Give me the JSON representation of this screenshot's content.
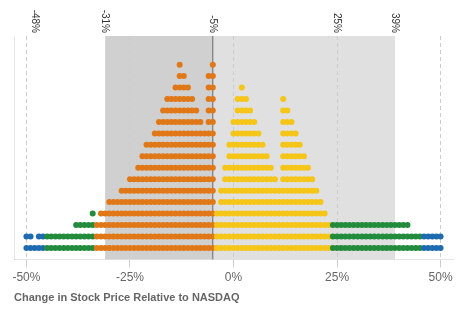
{
  "chart_data": {
    "type": "dot",
    "xlabel": "Change in Stock Price Relative to NASDAQ",
    "x": [
      -50,
      -49,
      -48,
      -47,
      -46,
      -45,
      -44,
      -43,
      -42,
      -41,
      -40,
      -39,
      -38,
      -37,
      -36,
      -35,
      -34,
      -33,
      -32,
      -31,
      -30,
      -29,
      -28,
      -27,
      -26,
      -25,
      -24,
      -23,
      -22,
      -21,
      -20,
      -19,
      -18,
      -17,
      -16,
      -15,
      -14,
      -13,
      -12,
      -11,
      -10,
      -9,
      -8,
      -7,
      -6,
      -5,
      -4,
      -3,
      -2,
      -1,
      0,
      1,
      2,
      3,
      4,
      5,
      6,
      7,
      8,
      9,
      10,
      11,
      12,
      13,
      14,
      15,
      16,
      17,
      18,
      19,
      20,
      21,
      22,
      23,
      24,
      25,
      26,
      27,
      28,
      29,
      30,
      31,
      32,
      33,
      34,
      35,
      36,
      37,
      38,
      39,
      40,
      41,
      42,
      43,
      44,
      45,
      46,
      47,
      48,
      49,
      50
    ],
    "values": [
      2,
      2,
      1,
      2,
      2,
      2,
      2,
      2,
      2,
      2,
      2,
      2,
      3,
      3,
      3,
      3,
      4,
      3,
      4,
      4,
      5,
      5,
      5,
      6,
      6,
      7,
      7,
      8,
      9,
      10,
      10,
      11,
      12,
      13,
      14,
      14,
      15,
      17,
      16,
      15,
      14,
      13,
      12,
      11,
      16,
      17,
      4,
      6,
      8,
      10,
      12,
      14,
      15,
      14,
      13,
      12,
      11,
      10,
      9,
      8,
      7,
      6,
      14,
      13,
      12,
      11,
      10,
      9,
      8,
      7,
      6,
      5,
      4,
      3,
      3,
      3,
      3,
      3,
      3,
      3,
      3,
      3,
      3,
      3,
      3,
      3,
      3,
      3,
      3,
      3,
      3,
      3,
      3,
      2,
      2,
      2,
      2,
      2,
      2,
      2,
      2
    ],
    "colors": [
      "#1f6bb0",
      "#1f6bb0",
      "#1f6bb0",
      "#1f6bb0",
      "#1f6bb0",
      "#228b3c",
      "#228b3c",
      "#228b3c",
      "#228b3c",
      "#228b3c",
      "#228b3c",
      "#228b3c",
      "#228b3c",
      "#228b3c",
      "#228b3c",
      "#228b3c",
      "#228b3c",
      "#e07818",
      "#e07818",
      "#e07818",
      "#e07818",
      "#e07818",
      "#e07818",
      "#e07818",
      "#e07818",
      "#e07818",
      "#e07818",
      "#e07818",
      "#e07818",
      "#e07818",
      "#e07818",
      "#e07818",
      "#e07818",
      "#e07818",
      "#e07818",
      "#e07818",
      "#e07818",
      "#e07818",
      "#e07818",
      "#e07818",
      "#e07818",
      "#e07818",
      "#e07818",
      "#e07818",
      "#e07818",
      "#e07818",
      "#f5c518",
      "#f5c518",
      "#f5c518",
      "#f5c518",
      "#f5c518",
      "#f5c518",
      "#f5c518",
      "#f5c518",
      "#f5c518",
      "#f5c518",
      "#f5c518",
      "#f5c518",
      "#f5c518",
      "#f5c518",
      "#f5c518",
      "#f5c518",
      "#f5c518",
      "#f5c518",
      "#f5c518",
      "#f5c518",
      "#f5c518",
      "#f5c518",
      "#f5c518",
      "#f5c518",
      "#f5c518",
      "#f5c518",
      "#f5c518",
      "#f5c518",
      "#228b3c",
      "#228b3c",
      "#228b3c",
      "#228b3c",
      "#228b3c",
      "#228b3c",
      "#228b3c",
      "#228b3c",
      "#228b3c",
      "#228b3c",
      "#228b3c",
      "#228b3c",
      "#228b3c",
      "#228b3c",
      "#228b3c",
      "#228b3c",
      "#228b3c",
      "#228b3c",
      "#228b3c",
      "#228b3c",
      "#228b3c",
      "#228b3c",
      "#1f6bb0",
      "#1f6bb0",
      "#1f6bb0",
      "#1f6bb0",
      "#1f6bb0"
    ],
    "xlim": [
      -53,
      53
    ],
    "xticks": [
      {
        "value": -50,
        "label": "-50%"
      },
      {
        "value": -25,
        "label": "-25%"
      },
      {
        "value": 0,
        "label": "0%"
      },
      {
        "value": 25,
        "label": "25%"
      },
      {
        "value": 50,
        "label": "50%"
      }
    ],
    "ylim": [
      -0.5,
      19
    ],
    "tick_labels": "x",
    "grid": true,
    "spans": [
      {
        "x1": -31,
        "x2": -5,
        "color": "#d0d0d0"
      },
      {
        "x1": -5,
        "x2": 39,
        "color": "#e0e0e0"
      }
    ],
    "vlines": [
      -5
    ],
    "annotations": [
      {
        "x": -48,
        "text": "-48%"
      },
      {
        "x": -31,
        "text": "-31%"
      },
      {
        "x": -5,
        "text": "-5%"
      },
      {
        "x": 25,
        "text": "25%"
      },
      {
        "x": 39,
        "text": "39%"
      }
    ]
  }
}
